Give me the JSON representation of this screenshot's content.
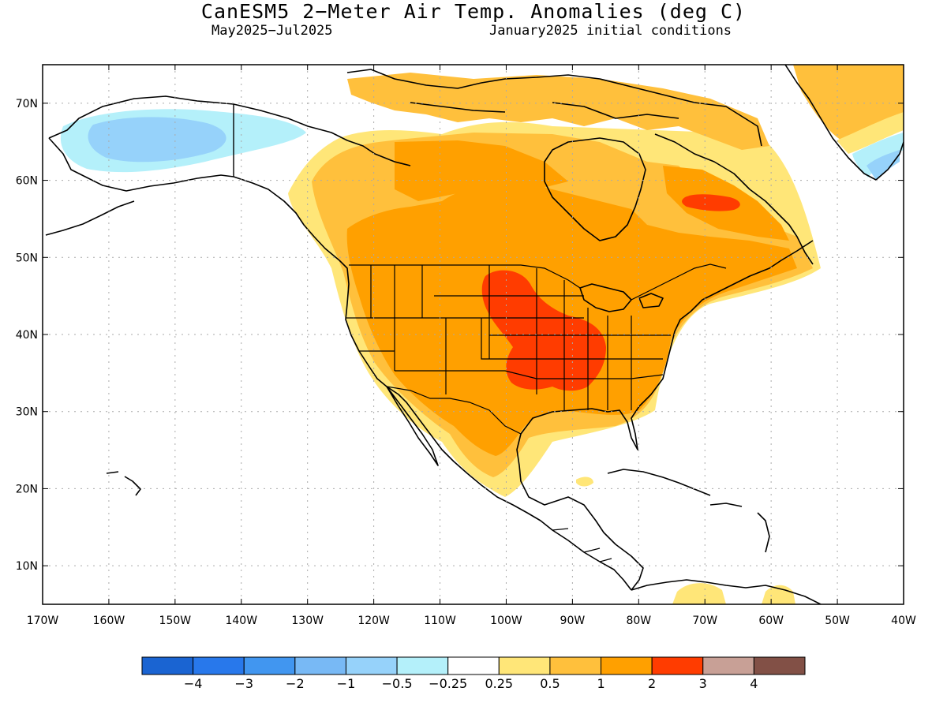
{
  "title": "CanESM5 2−Meter Air Temp. Anomalies (deg C)",
  "subtitle_left": "May2025−Jul2025",
  "subtitle_right": "January2025 initial conditions",
  "map": {
    "lon_range": [
      -170,
      -40
    ],
    "lat_range": [
      5,
      75
    ],
    "lat_labels": [
      {
        "lat": 70,
        "label": "70N"
      },
      {
        "lat": 60,
        "label": "60N"
      },
      {
        "lat": 50,
        "label": "50N"
      },
      {
        "lat": 40,
        "label": "40N"
      },
      {
        "lat": 30,
        "label": "30N"
      },
      {
        "lat": 20,
        "label": "20N"
      },
      {
        "lat": 10,
        "label": "10N"
      }
    ],
    "lon_labels": [
      {
        "lon": -170,
        "label": "170W"
      },
      {
        "lon": -160,
        "label": "160W"
      },
      {
        "lon": -150,
        "label": "150W"
      },
      {
        "lon": -140,
        "label": "140W"
      },
      {
        "lon": -130,
        "label": "130W"
      },
      {
        "lon": -120,
        "label": "120W"
      },
      {
        "lon": -110,
        "label": "110W"
      },
      {
        "lon": -100,
        "label": "100W"
      },
      {
        "lon": -90,
        "label": "90W"
      },
      {
        "lon": -80,
        "label": "80W"
      },
      {
        "lon": -70,
        "label": "70W"
      },
      {
        "lon": -60,
        "label": "60W"
      },
      {
        "lon": -50,
        "label": "50W"
      },
      {
        "lon": -40,
        "label": "40W"
      }
    ],
    "grid": true
  },
  "colorbar": {
    "colors": [
      "#1a64d2",
      "#2878eb",
      "#4196f0",
      "#78b9f5",
      "#96d2fa",
      "#b4f0fa",
      "#ffffff",
      "#ffe678",
      "#ffc03c",
      "#ffa000",
      "#ff3c00",
      "#c8a096",
      "#825046"
    ],
    "labels": [
      "−4",
      "−3",
      "−2",
      "−1",
      "−0.5",
      "−0.25",
      "0.25",
      "0.5",
      "1",
      "2",
      "3",
      "4"
    ]
  }
}
